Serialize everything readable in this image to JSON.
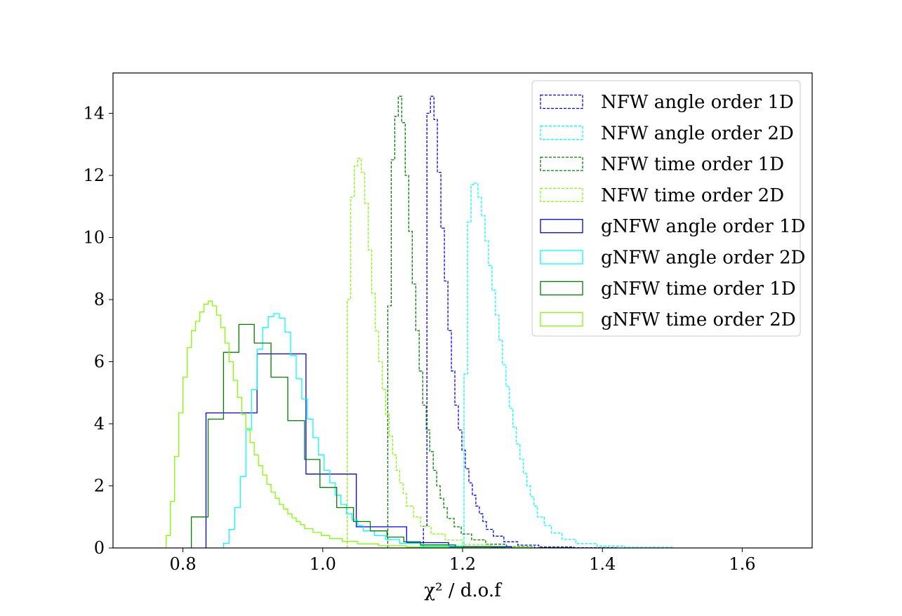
{
  "chart_data": {
    "type": "histogram",
    "xlabel": "χ² / d.o.f",
    "ylabel": "",
    "title": "",
    "xlim": [
      0.7,
      1.7
    ],
    "ylim": [
      0,
      15.3
    ],
    "x_ticks": [
      "0.8",
      "1.0",
      "1.2",
      "1.4",
      "1.6"
    ],
    "y_ticks": [
      "0",
      "2",
      "4",
      "6",
      "8",
      "10",
      "12",
      "14"
    ],
    "grid": false,
    "legend_position": "top-right",
    "series": [
      {
        "name": "NFW angle order 1D",
        "color": "#0000ff",
        "linestyle": "dashed",
        "bins": [
          [
            1.144,
            1.149,
            0.7
          ],
          [
            1.149,
            1.154,
            14.0
          ],
          [
            1.154,
            1.159,
            14.55
          ],
          [
            1.159,
            1.164,
            13.8
          ],
          [
            1.164,
            1.169,
            12.1
          ],
          [
            1.169,
            1.174,
            10.3
          ],
          [
            1.174,
            1.179,
            8.6
          ],
          [
            1.179,
            1.184,
            7.0
          ],
          [
            1.184,
            1.189,
            5.7
          ],
          [
            1.189,
            1.194,
            4.6
          ],
          [
            1.194,
            1.199,
            3.8
          ],
          [
            1.199,
            1.204,
            3.15
          ],
          [
            1.204,
            1.209,
            2.55
          ],
          [
            1.209,
            1.214,
            2.1
          ],
          [
            1.214,
            1.219,
            1.7
          ],
          [
            1.219,
            1.224,
            1.35
          ],
          [
            1.224,
            1.229,
            1.1
          ],
          [
            1.229,
            1.234,
            0.85
          ],
          [
            1.234,
            1.244,
            0.6
          ],
          [
            1.244,
            1.259,
            0.38
          ],
          [
            1.259,
            1.279,
            0.2
          ],
          [
            1.279,
            1.309,
            0.09
          ],
          [
            1.309,
            1.359,
            0.03
          ],
          [
            1.359,
            1.42,
            0.01
          ]
        ]
      },
      {
        "name": "NFW angle order 2D",
        "color": "#00ffff",
        "linestyle": "dashed",
        "bins": [
          [
            1.202,
            1.207,
            5.6
          ],
          [
            1.207,
            1.212,
            10.5
          ],
          [
            1.212,
            1.217,
            11.7
          ],
          [
            1.217,
            1.222,
            11.75
          ],
          [
            1.222,
            1.227,
            11.3
          ],
          [
            1.227,
            1.232,
            10.7
          ],
          [
            1.232,
            1.237,
            9.9
          ],
          [
            1.237,
            1.242,
            9.1
          ],
          [
            1.242,
            1.247,
            8.3
          ],
          [
            1.247,
            1.252,
            7.5
          ],
          [
            1.252,
            1.257,
            6.7
          ],
          [
            1.257,
            1.262,
            5.9
          ],
          [
            1.262,
            1.267,
            5.2
          ],
          [
            1.267,
            1.272,
            4.5
          ],
          [
            1.272,
            1.277,
            3.9
          ],
          [
            1.277,
            1.282,
            3.35
          ],
          [
            1.282,
            1.287,
            2.85
          ],
          [
            1.287,
            1.292,
            2.4
          ],
          [
            1.292,
            1.297,
            2.0
          ],
          [
            1.297,
            1.302,
            1.65
          ],
          [
            1.302,
            1.307,
            1.35
          ],
          [
            1.307,
            1.317,
            1.0
          ],
          [
            1.317,
            1.327,
            0.72
          ],
          [
            1.327,
            1.342,
            0.48
          ],
          [
            1.342,
            1.362,
            0.28
          ],
          [
            1.362,
            1.392,
            0.14
          ],
          [
            1.392,
            1.432,
            0.06
          ],
          [
            1.432,
            1.5,
            0.02
          ]
        ]
      },
      {
        "name": "NFW time order 1D",
        "color": "#008000",
        "linestyle": "dashed",
        "bins": [
          [
            1.093,
            1.098,
            7.8
          ],
          [
            1.098,
            1.103,
            12.5
          ],
          [
            1.103,
            1.108,
            13.9
          ],
          [
            1.108,
            1.113,
            14.55
          ],
          [
            1.113,
            1.118,
            13.7
          ],
          [
            1.118,
            1.123,
            12.0
          ],
          [
            1.123,
            1.128,
            10.2
          ],
          [
            1.128,
            1.133,
            8.5
          ],
          [
            1.133,
            1.138,
            7.0
          ],
          [
            1.138,
            1.143,
            5.7
          ],
          [
            1.143,
            1.148,
            4.6
          ],
          [
            1.148,
            1.153,
            3.8
          ],
          [
            1.153,
            1.158,
            3.1
          ],
          [
            1.158,
            1.163,
            2.5
          ],
          [
            1.163,
            1.168,
            2.0
          ],
          [
            1.168,
            1.173,
            1.6
          ],
          [
            1.173,
            1.178,
            1.3
          ],
          [
            1.178,
            1.188,
            0.95
          ],
          [
            1.188,
            1.198,
            0.68
          ],
          [
            1.198,
            1.213,
            0.45
          ],
          [
            1.213,
            1.233,
            0.26
          ],
          [
            1.233,
            1.263,
            0.12
          ],
          [
            1.263,
            1.303,
            0.04
          ],
          [
            1.303,
            1.36,
            0.01
          ]
        ]
      },
      {
        "name": "NFW time order 2D",
        "color": "#7fff00",
        "linestyle": "dashed",
        "bins": [
          [
            1.035,
            1.04,
            8.0
          ],
          [
            1.04,
            1.045,
            11.3
          ],
          [
            1.045,
            1.05,
            12.3
          ],
          [
            1.05,
            1.055,
            12.55
          ],
          [
            1.055,
            1.06,
            12.1
          ],
          [
            1.06,
            1.065,
            11.1
          ],
          [
            1.065,
            1.07,
            9.6
          ],
          [
            1.07,
            1.075,
            8.2
          ],
          [
            1.075,
            1.08,
            7.0
          ],
          [
            1.08,
            1.085,
            6.0
          ],
          [
            1.085,
            1.09,
            5.1
          ],
          [
            1.09,
            1.095,
            4.3
          ],
          [
            1.095,
            1.1,
            3.6
          ],
          [
            1.1,
            1.105,
            3.0
          ],
          [
            1.105,
            1.11,
            2.5
          ],
          [
            1.11,
            1.115,
            2.1
          ],
          [
            1.115,
            1.12,
            1.75
          ],
          [
            1.12,
            1.13,
            1.35
          ],
          [
            1.13,
            1.14,
            1.0
          ],
          [
            1.14,
            1.155,
            0.7
          ],
          [
            1.155,
            1.175,
            0.45
          ],
          [
            1.175,
            1.2,
            0.25
          ],
          [
            1.2,
            1.24,
            0.11
          ],
          [
            1.24,
            1.3,
            0.03
          ]
        ]
      },
      {
        "name": "gNFW angle order 1D",
        "color": "#0000ff",
        "linestyle": "solid",
        "bins": [
          [
            0.833,
            0.906,
            4.35
          ],
          [
            0.906,
            0.976,
            6.25
          ],
          [
            0.976,
            1.048,
            2.38
          ],
          [
            1.048,
            1.12,
            0.68
          ],
          [
            1.12,
            1.18,
            0.17
          ],
          [
            1.18,
            1.27,
            0.04
          ]
        ]
      },
      {
        "name": "gNFW angle order 2D",
        "color": "#00ffff",
        "linestyle": "solid",
        "bins": [
          [
            0.858,
            0.866,
            0.15
          ],
          [
            0.866,
            0.874,
            0.6
          ],
          [
            0.874,
            0.882,
            1.3
          ],
          [
            0.882,
            0.89,
            2.3
          ],
          [
            0.89,
            0.898,
            3.8
          ],
          [
            0.898,
            0.906,
            5.1
          ],
          [
            0.906,
            0.914,
            6.4
          ],
          [
            0.914,
            0.922,
            7.1
          ],
          [
            0.922,
            0.93,
            7.45
          ],
          [
            0.93,
            0.938,
            7.55
          ],
          [
            0.938,
            0.946,
            7.4
          ],
          [
            0.946,
            0.954,
            6.95
          ],
          [
            0.954,
            0.962,
            6.2
          ],
          [
            0.962,
            0.97,
            5.45
          ],
          [
            0.97,
            0.978,
            4.8
          ],
          [
            0.978,
            0.986,
            4.15
          ],
          [
            0.986,
            0.994,
            3.55
          ],
          [
            0.994,
            1.002,
            3.0
          ],
          [
            1.002,
            1.01,
            2.5
          ],
          [
            1.01,
            1.018,
            2.1
          ],
          [
            1.018,
            1.026,
            1.7
          ],
          [
            1.026,
            1.034,
            1.4
          ],
          [
            1.034,
            1.042,
            1.1
          ],
          [
            1.042,
            1.05,
            0.9
          ],
          [
            1.05,
            1.058,
            0.72
          ],
          [
            1.058,
            1.074,
            0.55
          ],
          [
            1.074,
            1.09,
            0.4
          ],
          [
            1.09,
            1.11,
            0.27
          ],
          [
            1.11,
            1.14,
            0.15
          ],
          [
            1.14,
            1.2,
            0.06
          ],
          [
            1.2,
            1.26,
            0.02
          ]
        ]
      },
      {
        "name": "gNFW time order 1D",
        "color": "#008000",
        "linestyle": "solid",
        "bins": [
          [
            0.812,
            0.836,
            1.0
          ],
          [
            0.836,
            0.858,
            4.15
          ],
          [
            0.858,
            0.88,
            6.3
          ],
          [
            0.88,
            0.902,
            7.2
          ],
          [
            0.902,
            0.926,
            6.6
          ],
          [
            0.926,
            0.95,
            5.5
          ],
          [
            0.95,
            0.974,
            4.1
          ],
          [
            0.974,
            0.996,
            2.85
          ],
          [
            0.996,
            1.02,
            1.95
          ],
          [
            1.02,
            1.044,
            1.3
          ],
          [
            1.044,
            1.068,
            0.85
          ],
          [
            1.068,
            1.092,
            0.55
          ],
          [
            1.092,
            1.116,
            0.35
          ],
          [
            1.116,
            1.14,
            0.2
          ],
          [
            1.14,
            1.19,
            0.1
          ],
          [
            1.19,
            1.26,
            0.03
          ]
        ]
      },
      {
        "name": "gNFW time order 2D",
        "color": "#7fff00",
        "linestyle": "solid",
        "bins": [
          [
            0.776,
            0.782,
            0.4
          ],
          [
            0.782,
            0.788,
            1.5
          ],
          [
            0.788,
            0.794,
            2.95
          ],
          [
            0.794,
            0.8,
            4.35
          ],
          [
            0.8,
            0.806,
            5.5
          ],
          [
            0.806,
            0.812,
            6.45
          ],
          [
            0.812,
            0.818,
            7.0
          ],
          [
            0.818,
            0.824,
            7.3
          ],
          [
            0.824,
            0.83,
            7.6
          ],
          [
            0.83,
            0.836,
            7.85
          ],
          [
            0.836,
            0.842,
            7.95
          ],
          [
            0.842,
            0.848,
            7.8
          ],
          [
            0.848,
            0.854,
            7.5
          ],
          [
            0.854,
            0.86,
            7.1
          ],
          [
            0.86,
            0.866,
            6.6
          ],
          [
            0.866,
            0.872,
            6.0
          ],
          [
            0.872,
            0.878,
            5.4
          ],
          [
            0.878,
            0.884,
            4.85
          ],
          [
            0.884,
            0.89,
            4.3
          ],
          [
            0.89,
            0.896,
            3.85
          ],
          [
            0.896,
            0.902,
            3.4
          ],
          [
            0.902,
            0.908,
            3.0
          ],
          [
            0.908,
            0.914,
            2.65
          ],
          [
            0.914,
            0.92,
            2.35
          ],
          [
            0.92,
            0.926,
            2.05
          ],
          [
            0.926,
            0.932,
            1.8
          ],
          [
            0.932,
            0.938,
            1.6
          ],
          [
            0.938,
            0.944,
            1.4
          ],
          [
            0.944,
            0.95,
            1.25
          ],
          [
            0.95,
            0.956,
            1.1
          ],
          [
            0.956,
            0.962,
            0.97
          ],
          [
            0.962,
            0.968,
            0.85
          ],
          [
            0.968,
            0.974,
            0.75
          ],
          [
            0.974,
            0.986,
            0.62
          ],
          [
            0.986,
            0.998,
            0.5
          ],
          [
            0.998,
            1.01,
            0.4
          ],
          [
            1.01,
            1.028,
            0.3
          ],
          [
            1.028,
            1.05,
            0.21
          ],
          [
            1.05,
            1.08,
            0.13
          ],
          [
            1.08,
            1.12,
            0.07
          ],
          [
            1.12,
            1.18,
            0.03
          ],
          [
            1.18,
            1.24,
            0.01
          ]
        ]
      }
    ]
  }
}
